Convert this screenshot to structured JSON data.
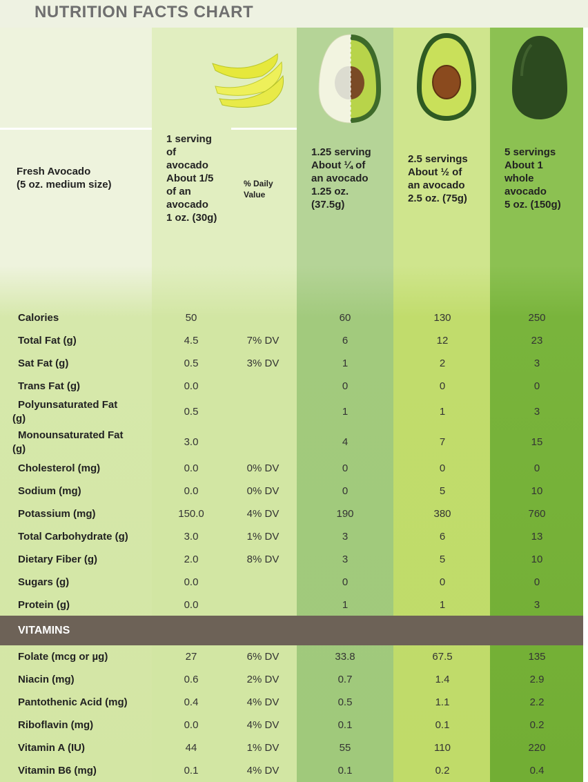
{
  "title": "NUTRITION FACTS CHART",
  "table": {
    "headers": [
      [
        "Fresh Avocado",
        "(5 oz. medium size)"
      ],
      [
        "1 serving",
        "of",
        "avocado",
        "About 1/5",
        "of an",
        "avocado",
        "1 oz. (30g)"
      ],
      [
        "% Daily",
        "Value"
      ],
      [
        "1.25 serving",
        "About ¼ of",
        "an avocado",
        "1.25 oz.",
        "(37.5g)"
      ],
      [
        "2.5 servings",
        "About ½ of",
        "an avocado",
        "2.5 oz. (75g)"
      ],
      [
        "5 servings",
        "About 1",
        "whole",
        "avocado",
        "5 oz. (150g)"
      ]
    ],
    "rows": [
      {
        "label": [
          "Calories"
        ],
        "values": [
          "50",
          "60",
          "130",
          "250"
        ]
      },
      {
        "label": [
          "Total Fat (g)"
        ],
        "values": [
          "4.5",
          "6",
          "12",
          "23"
        ],
        "dv": "7% DV"
      },
      {
        "label": [
          "Sat Fat (g)"
        ],
        "values": [
          "0.5",
          "1",
          "2",
          "3"
        ],
        "dv": "3% DV"
      },
      {
        "label": [
          "Trans Fat (g)"
        ],
        "values": [
          "0.0",
          "0",
          "0",
          "0"
        ]
      },
      {
        "label": [
          "Polyunsaturated Fat",
          "(g)"
        ],
        "values": [
          "0.5",
          "1",
          "1",
          "3"
        ]
      },
      {
        "label": [
          "Monounsaturated Fat",
          "(g)"
        ],
        "values": [
          "3.0",
          "4",
          "7",
          "15"
        ]
      },
      {
        "label": [
          "Cholesterol (mg)"
        ],
        "values": [
          "0.0",
          "0",
          "0",
          "0"
        ],
        "dv": "0% DV"
      },
      {
        "label": [
          "Sodium (mg)"
        ],
        "values": [
          "0.0",
          "0",
          "5",
          "10"
        ],
        "dv": "0% DV"
      },
      {
        "label": [
          "Potassium (mg)"
        ],
        "values": [
          "150.0",
          "190",
          "380",
          "760"
        ],
        "dv": "4% DV"
      },
      {
        "label": [
          "Total Carbohydrate (g)"
        ],
        "values": [
          "3.0",
          "3",
          "6",
          "13"
        ],
        "dv": "1% DV"
      },
      {
        "label": [
          "Dietary Fiber (g)"
        ],
        "values": [
          "2.0",
          "3",
          "5",
          "10"
        ],
        "dv": "8% DV"
      },
      {
        "label": [
          "Sugars (g)"
        ],
        "values": [
          "0.0",
          "0",
          "0",
          "0"
        ]
      },
      {
        "label": [
          "Protein (g)"
        ],
        "values": [
          "0.0",
          "1",
          "1",
          "3"
        ]
      }
    ],
    "section": "VITAMINS",
    "vitamin_rows": [
      {
        "label": [
          "Folate (mcg or µg)"
        ],
        "values": [
          "27",
          "33.8",
          "67.5",
          "135"
        ],
        "dv": "6% DV"
      },
      {
        "label": [
          "Niacin (mg)"
        ],
        "values": [
          "0.6",
          "0.7",
          "1.4",
          "2.9"
        ],
        "dv": "2% DV"
      },
      {
        "label": [
          "Pantothenic Acid (mg)"
        ],
        "values": [
          "0.4",
          "0.5",
          "1.1",
          "2.2"
        ],
        "dv": "4% DV"
      },
      {
        "label": [
          "Riboflavin (mg)"
        ],
        "values": [
          "0.0",
          "0.1",
          "0.1",
          "0.2"
        ],
        "dv": "4% DV"
      },
      {
        "label": [
          "Vitamin A (IU)"
        ],
        "values": [
          "44",
          "55",
          "110",
          "220"
        ],
        "dv": "1% DV"
      },
      {
        "label": [
          "Vitamin B6 (mg)"
        ],
        "values": [
          "0.1",
          "0.1",
          "0.2",
          "0.4"
        ],
        "dv": "4% DV"
      }
    ]
  }
}
